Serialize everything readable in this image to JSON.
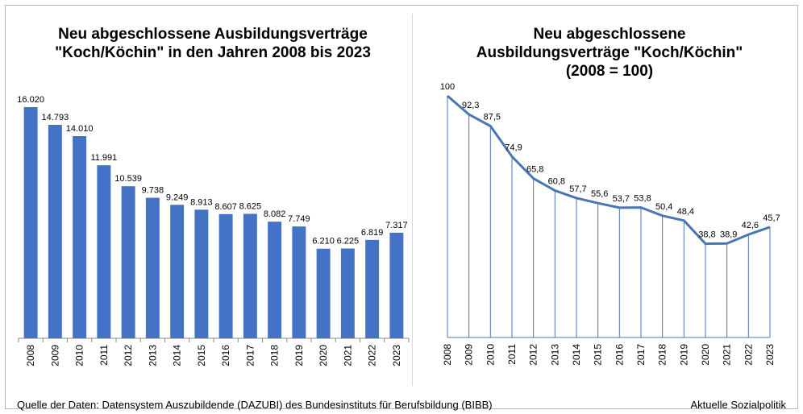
{
  "charts": {
    "left": {
      "title_line1": "Neu abgeschlossene Ausbildungsverträge",
      "title_line2": "\"Koch/Köchin\" in den Jahren 2008 bis 2023"
    },
    "right": {
      "title_line1": "Neu abgeschlossene",
      "title_line2": "Ausbildungsverträge \"Koch/Köchin\"",
      "title_line3": "(2008 = 100)"
    }
  },
  "footer": {
    "source": "Quelle der Daten: Datensystem Auszubildende (DAZUBI) des Bundesinstituts für Berufsbildung (BIBB)",
    "brand": "Aktuelle Sozialpolitik"
  },
  "colors": {
    "bar": "#4472c4",
    "line": "#4a76b4",
    "axis": "#888888"
  },
  "chart_data": [
    {
      "type": "bar",
      "title": "Neu abgeschlossene Ausbildungsverträge \"Koch/Köchin\" in den Jahren 2008 bis 2023",
      "categories": [
        "2008",
        "2009",
        "2010",
        "2011",
        "2012",
        "2013",
        "2014",
        "2015",
        "2016",
        "2017",
        "2018",
        "2019",
        "2020",
        "2021",
        "2022",
        "2023"
      ],
      "values": [
        16020,
        14793,
        14010,
        11991,
        10539,
        9738,
        9249,
        8913,
        8607,
        8625,
        8082,
        7749,
        6210,
        6225,
        6819,
        7317
      ],
      "data_labels": [
        "16.020",
        "14.793",
        "14.010",
        "11.991",
        "10.539",
        "9.738",
        "9.249",
        "8.913",
        "8.607",
        "8.625",
        "8.082",
        "7.749",
        "6.210",
        "6.225",
        "6.819",
        "7.317"
      ],
      "ylim": [
        0,
        16020
      ],
      "grid": false
    },
    {
      "type": "line",
      "title": "Neu abgeschlossene Ausbildungsverträge \"Koch/Köchin\" (2008 = 100)",
      "categories": [
        "2008",
        "2009",
        "2010",
        "2011",
        "2012",
        "2013",
        "2014",
        "2015",
        "2016",
        "2017",
        "2018",
        "2019",
        "2020",
        "2021",
        "2022",
        "2023"
      ],
      "values": [
        100,
        92.3,
        87.5,
        74.9,
        65.8,
        60.8,
        57.7,
        55.6,
        53.7,
        53.8,
        50.4,
        48.4,
        38.8,
        38.9,
        42.6,
        45.7
      ],
      "data_labels": [
        "100",
        "92,3",
        "87,5",
        "74,9",
        "65,8",
        "60,8",
        "57,7",
        "55,6",
        "53,7",
        "53,8",
        "50,4",
        "48,4",
        "38,8",
        "38,9",
        "42,6",
        "45,7"
      ],
      "ylim": [
        0,
        100
      ],
      "drop_lines": true,
      "grid": false
    }
  ]
}
